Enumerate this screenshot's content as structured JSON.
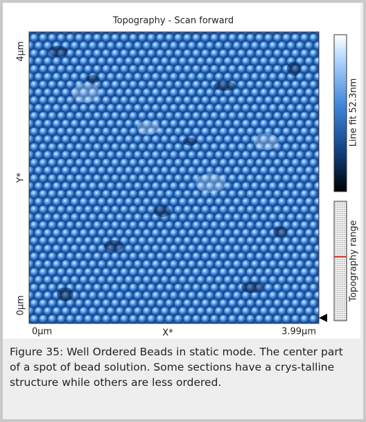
{
  "figure": {
    "title": "Topography - Scan forward",
    "y_axis": {
      "top": "4µm",
      "label": "Y*",
      "bottom": "0µm"
    },
    "x_axis": {
      "left": "0µm",
      "label": "X*",
      "right": "3.99µm"
    },
    "colorbar_label": "Line fit 52.3nm",
    "range_label": "Topography range"
  },
  "caption": "Figure 35: Well Ordered Beads in static mode. The center part of a spot of bead solution. Some sections have a crys-talline structure while others are less ordered."
}
